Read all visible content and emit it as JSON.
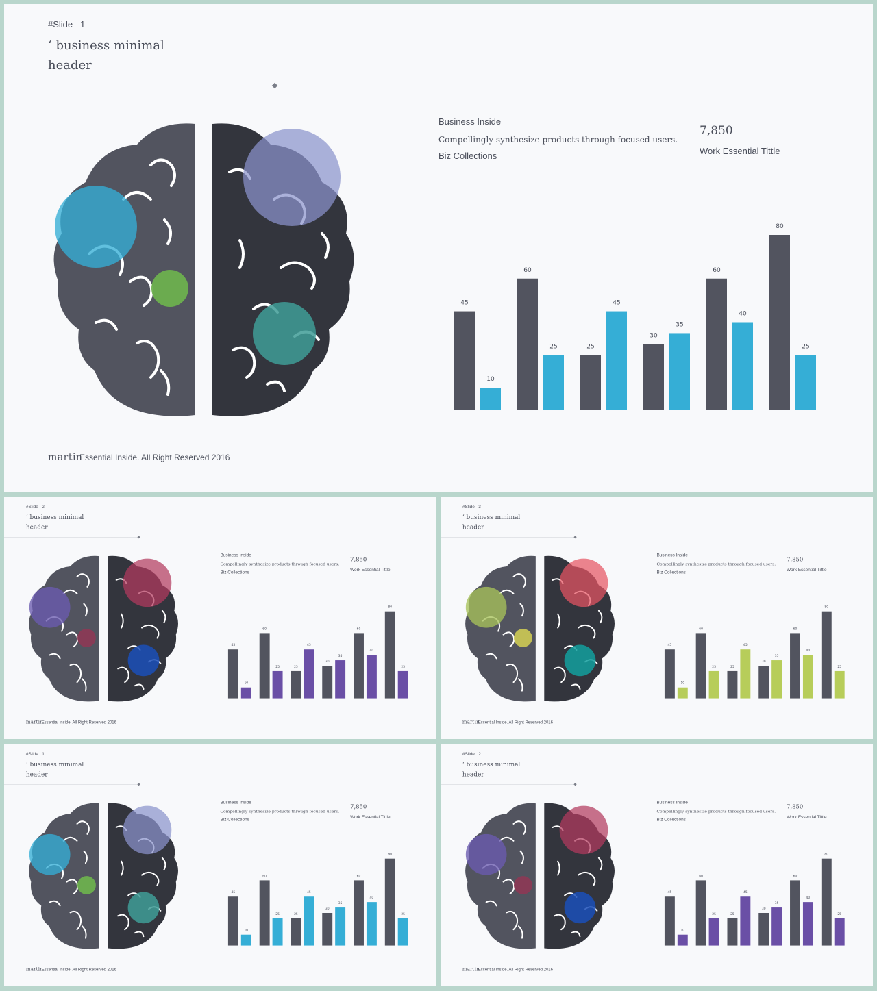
{
  "slides": [
    {
      "slide_label": "#Slide",
      "slide_number": "1",
      "colors": {
        "accent": "#35aed6",
        "circles": [
          "#35aed6",
          "#8a93cc",
          "#6db04e",
          "#3f9c96"
        ]
      }
    },
    {
      "slide_label": "#Slide",
      "slide_number": "2",
      "colors": {
        "accent": "#6a4fa6",
        "circles": [
          "#6a5bb0",
          "#b33a5e",
          "#8a3a55",
          "#1b4fb8"
        ]
      }
    },
    {
      "slide_label": "#Slide",
      "slide_number": "3",
      "colors": {
        "accent": "#b7cd5a",
        "circles": [
          "#a7c25a",
          "#e65563",
          "#c7c454",
          "#139f9e"
        ]
      }
    },
    {
      "slide_label": "#Slide",
      "slide_number": "1",
      "colors": {
        "accent": "#35aed6",
        "circles": [
          "#35aed6",
          "#8a93cc",
          "#6db04e",
          "#3f9c96"
        ]
      }
    },
    {
      "slide_label": "#Slide",
      "slide_number": "2",
      "colors": {
        "accent": "#6a4fa6",
        "circles": [
          "#6a5bb0",
          "#b33a5e",
          "#8a3a55",
          "#1b4fb8"
        ]
      }
    }
  ],
  "content": {
    "header_line1": "‘ business minimal",
    "header_line2": "header",
    "biz_title": "Business Inside",
    "biz_desc": "Compellingly synthesize products through focused users.",
    "biz_collections": "Biz Collections",
    "stat_value": "7,850",
    "stat_label": "Work Essential Tittle",
    "footer_brand": "martin",
    "footer_text": "Essential Inside. All Right Reserved 2016"
  },
  "chart_data": {
    "type": "bar",
    "categories": [
      "1",
      "2",
      "3",
      "4",
      "5",
      "6"
    ],
    "series": [
      {
        "values": [
          45,
          60,
          25,
          30,
          60,
          80
        ],
        "color": "#52545f"
      },
      {
        "values": [
          10,
          25,
          45,
          35,
          40,
          25
        ]
      }
    ],
    "ylim": [
      0,
      80
    ],
    "data_labels": true,
    "axes": "none",
    "grid": false
  }
}
